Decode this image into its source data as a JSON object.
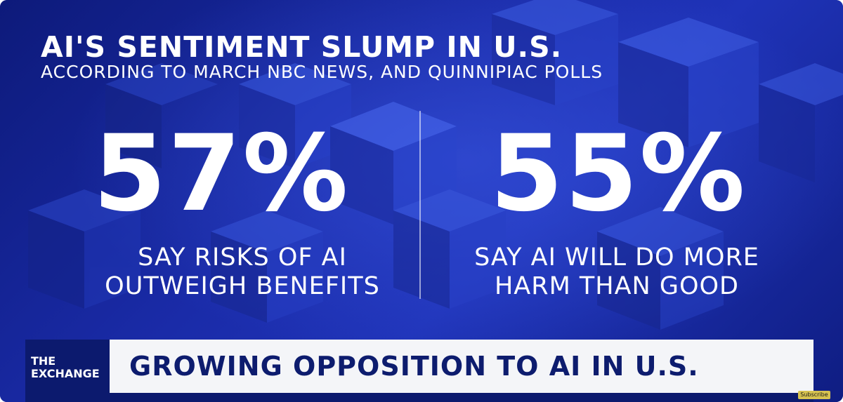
{
  "headline": "AI'S SENTIMENT SLUMP IN U.S.",
  "subhead": "ACCORDING TO MARCH NBC NEWS, AND QUINNIPIAC POLLS",
  "stats": [
    {
      "value": "57%",
      "caption_line1": "SAY RISKS OF AI",
      "caption_line2": "OUTWEIGH BENEFITS"
    },
    {
      "value": "55%",
      "caption_line1": "SAY AI WILL DO MORE",
      "caption_line2": "HARM THAN GOOD"
    }
  ],
  "lower_third": {
    "show_name_line1": "THE",
    "show_name_line2": "EXCHANGE",
    "banner": "GROWING OPPOSITION TO AI IN U.S."
  },
  "subscribe_label": "Subscribe",
  "colors": {
    "background": "#1a2ba8",
    "text": "#ffffff",
    "banner_background": "#f4f5f8",
    "banner_text": "#0d1c6e",
    "show_badge": "#0c1a6e",
    "subscribe": "#d6c250"
  }
}
